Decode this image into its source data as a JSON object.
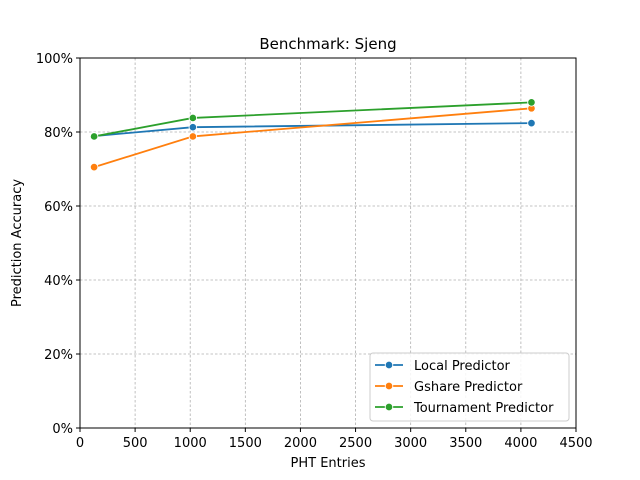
{
  "chart_data": {
    "type": "line",
    "title": "Benchmark: Sjeng",
    "xlabel": "PHT Entries",
    "ylabel": "Prediction Accuracy",
    "xlim": [
      0,
      4500
    ],
    "ylim": [
      0,
      100
    ],
    "xticks": [
      0,
      500,
      1000,
      1500,
      2000,
      2500,
      3000,
      3500,
      4000,
      4500
    ],
    "yticks": [
      0,
      20,
      40,
      60,
      80,
      100
    ],
    "xtick_labels": [
      "0",
      "500",
      "1000",
      "1500",
      "2000",
      "2500",
      "3000",
      "3500",
      "4000",
      "4500"
    ],
    "ytick_labels": [
      "0%",
      "20%",
      "40%",
      "60%",
      "80%",
      "100%"
    ],
    "grid": true,
    "legend_position": "lower-right",
    "x": [
      128,
      1024,
      4096
    ],
    "series": [
      {
        "name": "Local Predictor",
        "color": "#1f77b4",
        "values": [
          78.9,
          81.3,
          82.4
        ]
      },
      {
        "name": "Gshare Predictor",
        "color": "#ff7f0e",
        "values": [
          70.5,
          78.8,
          86.4
        ]
      },
      {
        "name": "Tournament Predictor",
        "color": "#2ca02c",
        "values": [
          78.8,
          83.8,
          88.0
        ]
      }
    ]
  }
}
